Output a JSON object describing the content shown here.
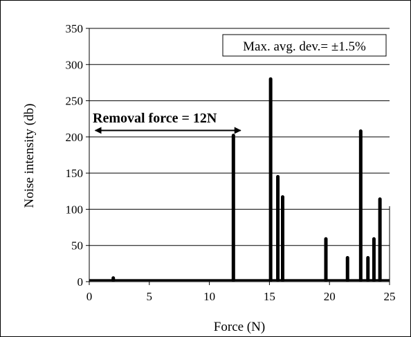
{
  "chart_data": {
    "type": "bar",
    "title": "",
    "xlabel": "Force (N)",
    "ylabel": "Noise intensity (db)",
    "xlim": [
      0,
      25
    ],
    "ylim": [
      0,
      350
    ],
    "x_ticks": [
      "0",
      "5",
      "10",
      "15",
      "20",
      "25"
    ],
    "y_ticks": [
      "0",
      "50",
      "100",
      "150",
      "200",
      "250",
      "300",
      "350"
    ],
    "grid": "horizontal",
    "legend": "none",
    "series_color": "#000000",
    "baseline": 2,
    "points": [
      {
        "x": 2.0,
        "y": 5
      },
      {
        "x": 12.0,
        "y": 202
      },
      {
        "x": 15.1,
        "y": 280
      },
      {
        "x": 15.7,
        "y": 145
      },
      {
        "x": 16.1,
        "y": 117
      },
      {
        "x": 19.7,
        "y": 59
      },
      {
        "x": 21.5,
        "y": 33
      },
      {
        "x": 22.6,
        "y": 208
      },
      {
        "x": 23.2,
        "y": 33
      },
      {
        "x": 23.7,
        "y": 59
      },
      {
        "x": 24.2,
        "y": 114
      }
    ],
    "annotations": {
      "box_text": "Max. avg. dev.= ±1.5%",
      "arrow_label": "Removal force = 12N",
      "arrow_range": [
        0.5,
        12.6
      ],
      "arrow_y": 209
    }
  }
}
